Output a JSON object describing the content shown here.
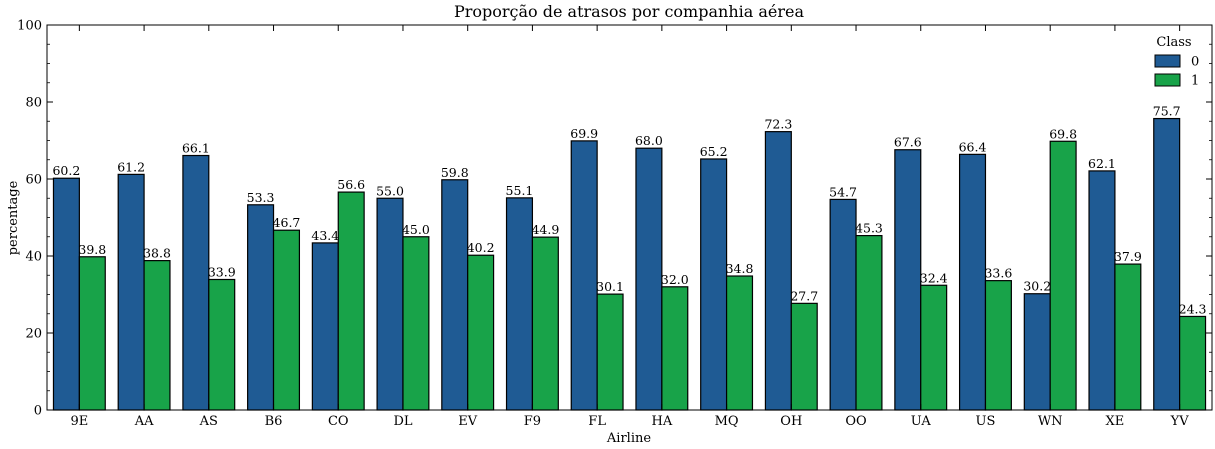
{
  "chart_data": {
    "type": "bar",
    "title": "Proporção de atrasos por companhia aérea",
    "xlabel": "Airline",
    "ylabel": "percentage",
    "ylim": [
      0,
      100
    ],
    "yticks": [
      "0",
      "20",
      "40",
      "60",
      "80",
      "100"
    ],
    "grid": false,
    "legend_title": "Class",
    "legend_position": "top-right",
    "categories": [
      "9E",
      "AA",
      "AS",
      "B6",
      "CO",
      "DL",
      "EV",
      "F9",
      "FL",
      "HA",
      "MQ",
      "OH",
      "OO",
      "UA",
      "US",
      "WN",
      "XE",
      "YV"
    ],
    "series": [
      {
        "name": "0",
        "color": "#1f5b94",
        "values": [
          60.2,
          61.2,
          66.1,
          53.3,
          43.4,
          55.0,
          59.8,
          55.1,
          69.9,
          68.0,
          65.2,
          72.3,
          54.7,
          67.6,
          66.4,
          30.2,
          62.1,
          75.7
        ],
        "labels": [
          "60.2",
          "61.2",
          "66.1",
          "53.3",
          "43.4",
          "55.0",
          "59.8",
          "55.1",
          "69.9",
          "68.0",
          "65.2",
          "72.3",
          "54.7",
          "67.6",
          "66.4",
          "30.2",
          "62.1",
          "75.7"
        ]
      },
      {
        "name": "1",
        "color": "#18a349",
        "values": [
          39.8,
          38.8,
          33.9,
          46.7,
          56.6,
          45.0,
          40.2,
          44.9,
          30.1,
          32.0,
          34.8,
          27.7,
          45.3,
          32.4,
          33.6,
          69.8,
          37.9,
          24.3
        ],
        "labels": [
          "39.8",
          "38.8",
          "33.9",
          "46.7",
          "56.6",
          "45.0",
          "40.2",
          "44.9",
          "30.1",
          "32.0",
          "34.8",
          "27.7",
          "45.3",
          "32.4",
          "33.6",
          "69.8",
          "37.9",
          "24.3"
        ]
      }
    ]
  }
}
